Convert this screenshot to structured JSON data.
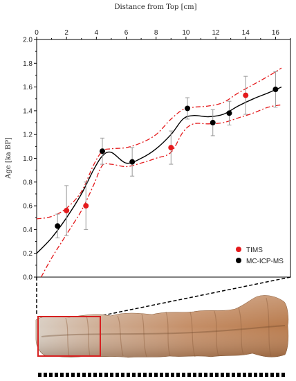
{
  "chart_data": {
    "type": "scatter",
    "title": "",
    "xlabel": "Distance from Top [cm]",
    "ylabel": "Age [ka BP]",
    "xlim": [
      0,
      17
    ],
    "ylim": [
      0.0,
      2.0
    ],
    "x_ticks": [
      0,
      2,
      4,
      6,
      8,
      10,
      12,
      14,
      16
    ],
    "y_ticks": [
      "0.0",
      "0.2",
      "0.4",
      "0.6",
      "0.8",
      "1.0",
      "1.2",
      "1.4",
      "1.6",
      "1.8",
      "2.0"
    ],
    "x_axis_position": "top",
    "grid": false,
    "legend_position": "bottom-right",
    "series": [
      {
        "name": "TIMS",
        "color": "#e41a1c",
        "points": [
          {
            "x": 2.0,
            "y": 0.56,
            "err": 0.21
          },
          {
            "x": 3.3,
            "y": 0.6,
            "err": 0.2
          },
          {
            "x": 9.0,
            "y": 1.09,
            "err": 0.14
          },
          {
            "x": 14.0,
            "y": 1.53,
            "err": 0.16
          }
        ]
      },
      {
        "name": "MC-ICP-MS",
        "color": "#000000",
        "points": [
          {
            "x": 1.4,
            "y": 0.43,
            "err": 0.1
          },
          {
            "x": 4.4,
            "y": 1.06,
            "err": 0.11
          },
          {
            "x": 6.4,
            "y": 0.97,
            "err": 0.12
          },
          {
            "x": 10.1,
            "y": 1.42,
            "err": 0.09
          },
          {
            "x": 11.8,
            "y": 1.3,
            "err": 0.11
          },
          {
            "x": 12.9,
            "y": 1.38,
            "err": 0.1
          },
          {
            "x": 16.0,
            "y": 1.58,
            "err": 0.15
          }
        ]
      }
    ],
    "age_model": {
      "color": "#000000",
      "points": [
        [
          0,
          0.2
        ],
        [
          1,
          0.33
        ],
        [
          2,
          0.5
        ],
        [
          3,
          0.7
        ],
        [
          3.8,
          0.9
        ],
        [
          4.4,
          1.02
        ],
        [
          5,
          1.05
        ],
        [
          6,
          0.96
        ],
        [
          7,
          1.0
        ],
        [
          8,
          1.08
        ],
        [
          9,
          1.2
        ],
        [
          9.8,
          1.33
        ],
        [
          10.5,
          1.36
        ],
        [
          11.5,
          1.35
        ],
        [
          12.5,
          1.37
        ],
        [
          13.5,
          1.44
        ],
        [
          14.5,
          1.5
        ],
        [
          15.5,
          1.55
        ],
        [
          16.4,
          1.6
        ]
      ]
    },
    "upper_bound": {
      "color": "#e41a1c",
      "points": [
        [
          0,
          0.49
        ],
        [
          1,
          0.51
        ],
        [
          2,
          0.58
        ],
        [
          3,
          0.72
        ],
        [
          3.8,
          0.94
        ],
        [
          4.4,
          1.06
        ],
        [
          5,
          1.08
        ],
        [
          6,
          1.09
        ],
        [
          7,
          1.13
        ],
        [
          8,
          1.2
        ],
        [
          9,
          1.33
        ],
        [
          9.8,
          1.41
        ],
        [
          10.5,
          1.43
        ],
        [
          11.5,
          1.44
        ],
        [
          12.5,
          1.47
        ],
        [
          13.5,
          1.55
        ],
        [
          14.5,
          1.62
        ],
        [
          15.5,
          1.69
        ],
        [
          16.4,
          1.76
        ]
      ]
    },
    "lower_bound": {
      "color": "#e41a1c",
      "points": [
        [
          0.3,
          0.0
        ],
        [
          1,
          0.16
        ],
        [
          2,
          0.36
        ],
        [
          3,
          0.56
        ],
        [
          3.8,
          0.77
        ],
        [
          4.4,
          0.94
        ],
        [
          5,
          0.95
        ],
        [
          6,
          0.93
        ],
        [
          7,
          0.96
        ],
        [
          8,
          1.0
        ],
        [
          9,
          1.05
        ],
        [
          9.8,
          1.22
        ],
        [
          10.5,
          1.29
        ],
        [
          11.5,
          1.29
        ],
        [
          12.5,
          1.3
        ],
        [
          13.5,
          1.34
        ],
        [
          14.5,
          1.38
        ],
        [
          15.5,
          1.43
        ],
        [
          16.4,
          1.45
        ]
      ]
    }
  },
  "photo": {
    "highlight_color": "#d62020"
  }
}
